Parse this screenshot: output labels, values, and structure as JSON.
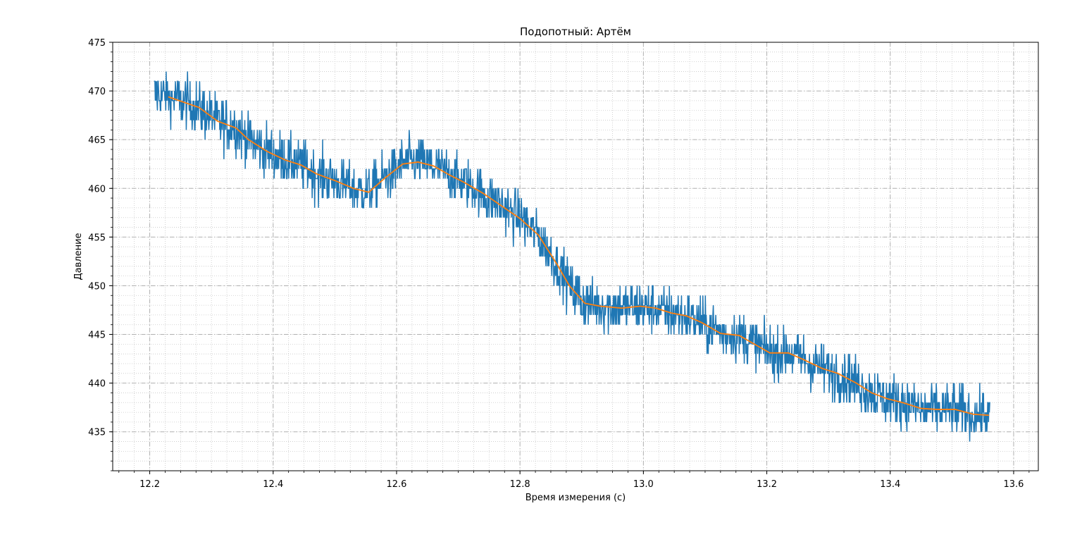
{
  "chart_data": {
    "type": "line",
    "title": "Подопотный: Артём",
    "xlabel": "Время измерения (с)",
    "ylabel": "Давление",
    "xlim": [
      12.14,
      13.64
    ],
    "ylim": [
      431,
      475
    ],
    "xticks": [
      "12.2",
      "12.4",
      "12.6",
      "12.8",
      "13.0",
      "13.2",
      "13.4",
      "13.6"
    ],
    "yticks": [
      "435",
      "440",
      "445",
      "450",
      "455",
      "460",
      "465",
      "470",
      "475"
    ],
    "grid": {
      "major": "dash-dot",
      "minor": "dotted"
    },
    "colors": {
      "raw": "#1f77b4",
      "smoothed": "#ff7f0e"
    },
    "series": [
      {
        "role": "raw",
        "x_range": [
          12.207,
          13.562
        ],
        "samples": 2000,
        "noise_band": 3,
        "min": 433,
        "max": 473
      },
      {
        "role": "smoothed",
        "x": [
          12.23,
          12.28,
          12.31,
          12.34,
          12.36,
          12.39,
          12.42,
          12.445,
          12.47,
          12.5,
          12.53,
          12.555,
          12.58,
          12.61,
          12.635,
          12.66,
          12.685,
          12.71,
          12.74,
          12.77,
          12.8,
          12.83,
          12.86,
          12.88,
          12.905,
          12.93,
          12.965,
          12.995,
          13.02,
          13.045,
          13.07,
          13.095,
          13.125,
          13.155,
          13.18,
          13.205,
          13.235,
          13.26,
          13.29,
          13.315,
          13.345,
          13.37,
          13.395,
          13.42,
          13.45,
          13.475,
          13.505,
          13.535,
          13.56
        ],
        "y": [
          469.4,
          468.3,
          466.9,
          466.2,
          465.0,
          463.8,
          462.9,
          462.4,
          461.5,
          460.8,
          460.0,
          459.6,
          461.0,
          462.5,
          462.7,
          462.3,
          461.4,
          460.6,
          459.5,
          458.2,
          456.9,
          455.2,
          452.2,
          450.0,
          448.2,
          447.9,
          447.7,
          447.9,
          447.7,
          447.2,
          446.9,
          446.2,
          445.1,
          444.9,
          444.0,
          443.1,
          443.1,
          442.4,
          441.5,
          441.0,
          440.0,
          439.0,
          438.4,
          438.0,
          437.4,
          437.3,
          437.3,
          436.8,
          436.7
        ]
      }
    ]
  }
}
